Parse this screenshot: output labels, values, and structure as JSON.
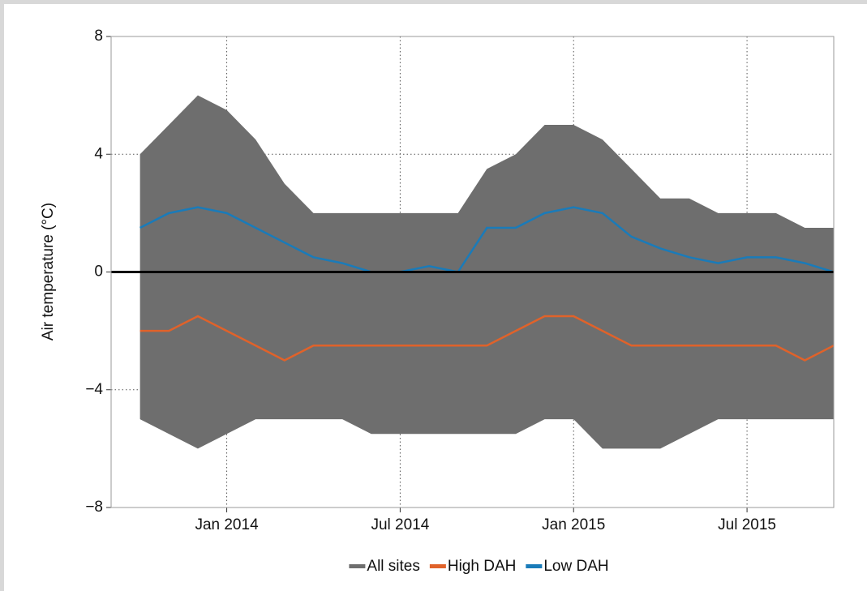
{
  "chart_data": {
    "type": "line",
    "y_label": "Air temperature (°C)",
    "x": [
      "2013-10",
      "2013-11",
      "2013-12",
      "2014-01",
      "2014-02",
      "2014-03",
      "2014-04",
      "2014-05",
      "2014-06",
      "2014-07",
      "2014-08",
      "2014-09",
      "2014-10",
      "2014-11",
      "2014-12",
      "2015-01",
      "2015-02",
      "2015-03",
      "2015-04",
      "2015-05",
      "2015-06",
      "2015-07",
      "2015-08",
      "2015-09",
      "2015-10"
    ],
    "series": [
      {
        "name": "All sites",
        "color": "#6e6e6e",
        "style": "band",
        "low": [
          -5,
          -5.5,
          -6,
          -5.5,
          -5,
          -5,
          -5,
          -5,
          -5.5,
          -5.5,
          -5.5,
          -5.5,
          -5.5,
          -5.5,
          -5,
          -5,
          -6,
          -6,
          -6,
          -5.5,
          -5,
          -5,
          -5,
          -5,
          -5
        ],
        "high": [
          4,
          5,
          6,
          5.5,
          4.5,
          3,
          2,
          2,
          2,
          2,
          2,
          2,
          3.5,
          4,
          5,
          5,
          4.5,
          3.5,
          2.5,
          2.5,
          2,
          2,
          2,
          1.5,
          1.5
        ]
      },
      {
        "name": "High DAH",
        "color": "#e0622a",
        "values": [
          -2,
          -2,
          -1.5,
          -2,
          -2.5,
          -3,
          -2.5,
          -2.5,
          -2.5,
          -2.5,
          -2.5,
          -2.5,
          -2.5,
          -2,
          -1.5,
          -1.5,
          -2,
          -2.5,
          -2.5,
          -2.5,
          -2.5,
          -2.5,
          -2.5,
          -3,
          -2.5
        ]
      },
      {
        "name": "Low DAH",
        "color": "#1a7bb9",
        "values": [
          1.5,
          2,
          2.2,
          2,
          1.5,
          1,
          0.5,
          0.3,
          0,
          0,
          0.2,
          0,
          1.5,
          1.5,
          2,
          2.2,
          2,
          1.2,
          0.8,
          0.5,
          0.3,
          0.5,
          0.5,
          0.3,
          0
        ]
      }
    ],
    "xlim": [
      "2013-09",
      "2015-10"
    ],
    "xticks": [
      {
        "value": "2014-01",
        "label": "Jan 2014"
      },
      {
        "value": "2014-07",
        "label": "Jul 2014"
      },
      {
        "value": "2015-01",
        "label": "Jan 2015"
      },
      {
        "value": "2015-07",
        "label": "Jul 2015"
      }
    ],
    "ylim": [
      -8,
      8
    ],
    "yticks": [
      {
        "value": -8,
        "label": "−8"
      },
      {
        "value": -4,
        "label": "−4"
      },
      0,
      4,
      8
    ],
    "reference_line": 0,
    "grid": true,
    "legend": "bottom"
  }
}
